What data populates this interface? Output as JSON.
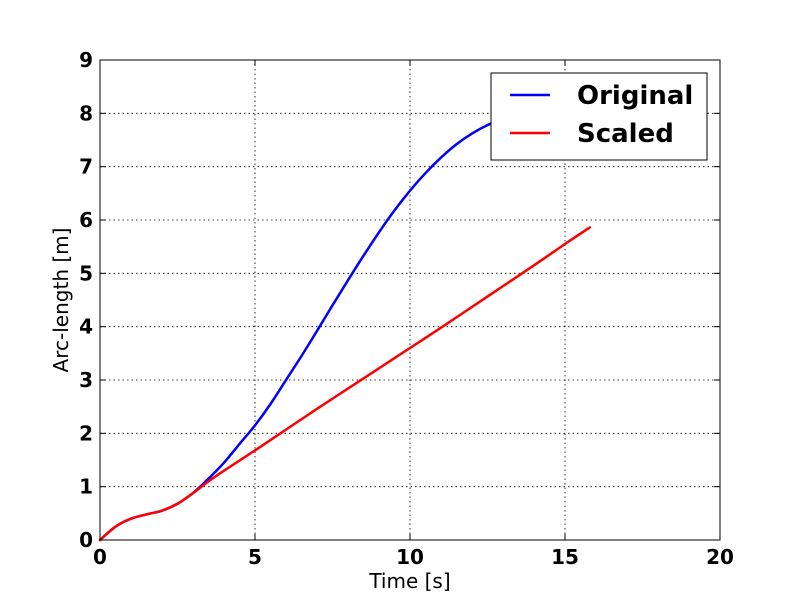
{
  "chart_data": {
    "type": "line",
    "title": "",
    "xlabel": "Time [s]",
    "ylabel": "Arc-length [m]",
    "xlim": [
      0,
      20
    ],
    "ylim": [
      0,
      9
    ],
    "xticks": [
      0,
      5,
      10,
      15,
      20
    ],
    "yticks": [
      0,
      1,
      2,
      3,
      4,
      5,
      6,
      7,
      8,
      9
    ],
    "grid": true,
    "legend_position": "top-right",
    "series": [
      {
        "name": "Original",
        "color": "#0000ff",
        "x": [
          0,
          0.5,
          1,
          1.5,
          2,
          2.5,
          3,
          3.5,
          4,
          4.5,
          5,
          5.5,
          6,
          6.5,
          7,
          7.5,
          8,
          8.5,
          9,
          9.5,
          10,
          10.5,
          11,
          11.5,
          12,
          12.5,
          13
        ],
        "y": [
          0,
          0.25,
          0.4,
          0.48,
          0.55,
          0.68,
          0.88,
          1.15,
          1.45,
          1.8,
          2.15,
          2.55,
          3.0,
          3.45,
          3.92,
          4.4,
          4.87,
          5.33,
          5.77,
          6.18,
          6.55,
          6.88,
          7.17,
          7.42,
          7.62,
          7.78,
          7.9
        ]
      },
      {
        "name": "Scaled",
        "color": "#ff0000",
        "x": [
          0,
          0.5,
          1,
          1.5,
          2,
          2.5,
          3,
          3.5,
          4,
          5,
          6,
          7,
          8,
          9,
          10,
          11,
          12,
          13,
          14,
          15,
          15.8
        ],
        "y": [
          0,
          0.25,
          0.4,
          0.48,
          0.55,
          0.68,
          0.88,
          1.1,
          1.3,
          1.68,
          2.07,
          2.46,
          2.84,
          3.22,
          3.6,
          3.98,
          4.37,
          4.76,
          5.15,
          5.55,
          5.86
        ]
      }
    ]
  }
}
